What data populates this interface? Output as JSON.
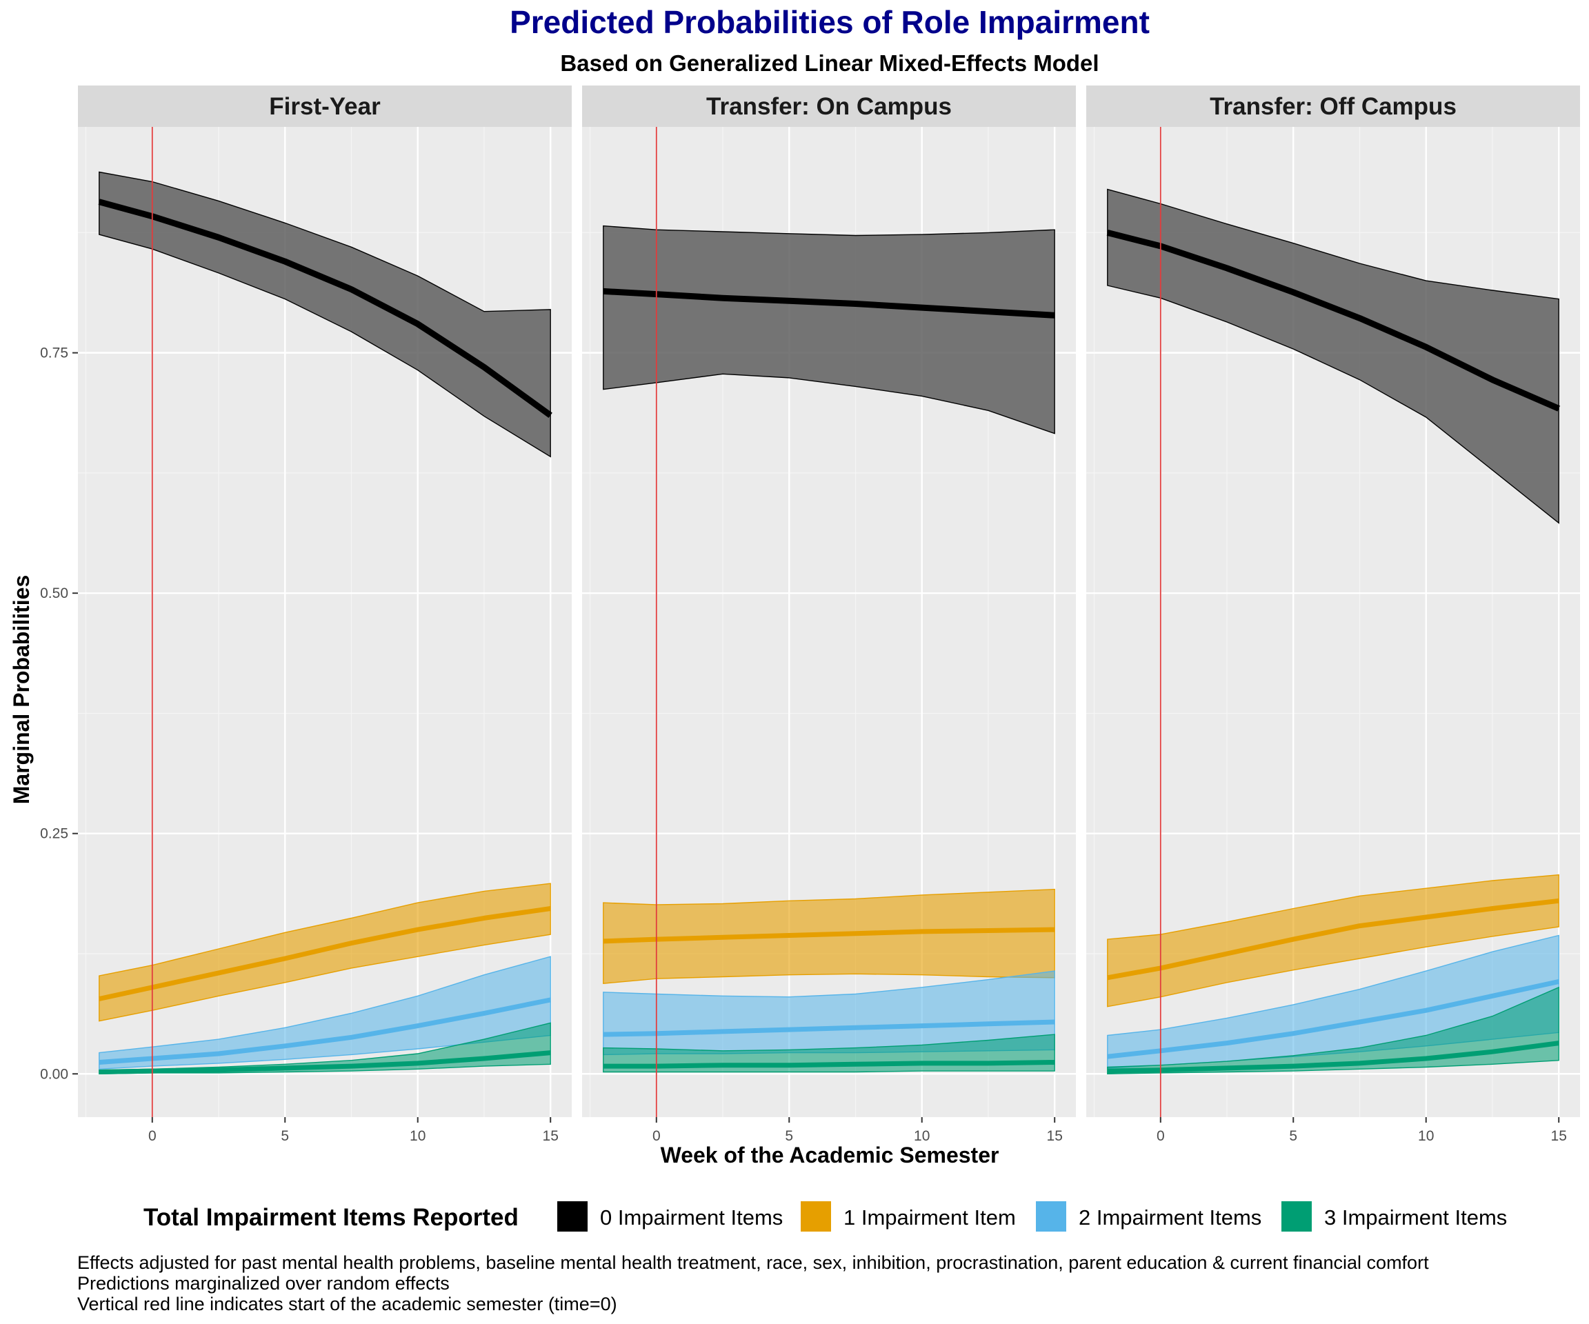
{
  "chart_data": {
    "type": "line",
    "title": "Predicted Probabilities of Role Impairment",
    "subtitle": "Based on Generalized Linear Mixed-Effects Model",
    "xlabel": "Week of the Academic Semester",
    "ylabel": "Marginal Probabilities",
    "xlim": [
      -2.8,
      15.8
    ],
    "ylim": [
      -0.045,
      0.985
    ],
    "xticks": [
      0,
      5,
      10,
      15
    ],
    "xtick_labels": [
      "0",
      "5",
      "10",
      "15"
    ],
    "yticks": [
      0,
      0.25,
      0.5,
      0.75
    ],
    "ytick_labels": [
      "0.00",
      "0.25",
      "0.50",
      "0.75"
    ],
    "grid": true,
    "reference_line": {
      "x": 0,
      "color": "#E03C3C"
    },
    "legend": {
      "title": "Total Impairment Items Reported",
      "position": "bottom",
      "items": [
        {
          "label": "0 Impairment Items",
          "color": "#000000"
        },
        {
          "label": "1 Impairment Item",
          "color": "#E69F00"
        },
        {
          "label": "2 Impairment Items",
          "color": "#56B4E9"
        },
        {
          "label": "3 Impairment Items",
          "color": "#009E73"
        }
      ]
    },
    "colors": {
      "title": "#00008B",
      "ribbon0": "#595959"
    },
    "x": [
      -2,
      0,
      2.5,
      5,
      7.5,
      10,
      12.5,
      15
    ],
    "panels": [
      {
        "name": "First-Year",
        "series": [
          {
            "name": "0 Impairment Items",
            "color": "#000000",
            "values": [
              0.907,
              0.892,
              0.87,
              0.845,
              0.816,
              0.78,
              0.735,
              0.685
            ],
            "lower": [
              0.873,
              0.858,
              0.833,
              0.806,
              0.772,
              0.732,
              0.684,
              0.642
            ],
            "upper": [
              0.938,
              0.928,
              0.908,
              0.885,
              0.86,
              0.83,
              0.793,
              0.795
            ]
          },
          {
            "name": "1 Impairment Item",
            "color": "#E69F00",
            "values": [
              0.078,
              0.09,
              0.105,
              0.12,
              0.136,
              0.15,
              0.162,
              0.172
            ],
            "lower": [
              0.055,
              0.066,
              0.081,
              0.095,
              0.11,
              0.122,
              0.134,
              0.145
            ],
            "upper": [
              0.102,
              0.113,
              0.13,
              0.147,
              0.162,
              0.178,
              0.19,
              0.198
            ]
          },
          {
            "name": "2 Impairment Items",
            "color": "#56B4E9",
            "values": [
              0.012,
              0.016,
              0.021,
              0.029,
              0.038,
              0.05,
              0.063,
              0.077
            ],
            "lower": [
              0.005,
              0.008,
              0.011,
              0.015,
              0.02,
              0.026,
              0.033,
              0.04
            ],
            "upper": [
              0.022,
              0.028,
              0.036,
              0.048,
              0.063,
              0.081,
              0.103,
              0.122
            ]
          },
          {
            "name": "3 Impairment Items",
            "color": "#009E73",
            "values": [
              0.002,
              0.003,
              0.004,
              0.006,
              0.008,
              0.011,
              0.016,
              0.022
            ],
            "lower": [
              0.0,
              0.001,
              0.001,
              0.002,
              0.003,
              0.005,
              0.008,
              0.01
            ],
            "upper": [
              0.004,
              0.005,
              0.007,
              0.01,
              0.014,
              0.021,
              0.036,
              0.053
            ]
          }
        ]
      },
      {
        "name": "Transfer: On Campus",
        "series": [
          {
            "name": "0 Impairment Items",
            "color": "#000000",
            "values": [
              0.814,
              0.811,
              0.807,
              0.804,
              0.801,
              0.797,
              0.793,
              0.789
            ],
            "lower": [
              0.712,
              0.719,
              0.728,
              0.724,
              0.715,
              0.705,
              0.69,
              0.666
            ],
            "upper": [
              0.882,
              0.878,
              0.876,
              0.874,
              0.872,
              0.873,
              0.875,
              0.878
            ]
          },
          {
            "name": "1 Impairment Item",
            "color": "#E69F00",
            "values": [
              0.138,
              0.14,
              0.142,
              0.144,
              0.146,
              0.148,
              0.149,
              0.15
            ],
            "lower": [
              0.094,
              0.099,
              0.101,
              0.103,
              0.104,
              0.103,
              0.101,
              0.1
            ],
            "upper": [
              0.178,
              0.176,
              0.177,
              0.18,
              0.182,
              0.186,
              0.189,
              0.192
            ]
          },
          {
            "name": "2 Impairment Items",
            "color": "#56B4E9",
            "values": [
              0.041,
              0.042,
              0.044,
              0.046,
              0.048,
              0.05,
              0.052,
              0.054
            ],
            "lower": [
              0.02,
              0.021,
              0.021,
              0.022,
              0.022,
              0.023,
              0.024,
              0.025
            ],
            "upper": [
              0.085,
              0.083,
              0.081,
              0.08,
              0.083,
              0.09,
              0.098,
              0.107
            ]
          },
          {
            "name": "3 Impairment Items",
            "color": "#009E73",
            "values": [
              0.008,
              0.008,
              0.009,
              0.009,
              0.01,
              0.011,
              0.011,
              0.012
            ],
            "lower": [
              0.002,
              0.002,
              0.002,
              0.002,
              0.002,
              0.003,
              0.003,
              0.003
            ],
            "upper": [
              0.027,
              0.026,
              0.024,
              0.025,
              0.027,
              0.03,
              0.035,
              0.041
            ]
          }
        ]
      },
      {
        "name": "Transfer: Off Campus",
        "series": [
          {
            "name": "0 Impairment Items",
            "color": "#000000",
            "values": [
              0.875,
              0.861,
              0.838,
              0.813,
              0.786,
              0.756,
              0.722,
              0.692
            ],
            "lower": [
              0.82,
              0.807,
              0.782,
              0.754,
              0.722,
              0.683,
              0.628,
              0.573
            ],
            "upper": [
              0.92,
              0.905,
              0.884,
              0.864,
              0.843,
              0.825,
              0.815,
              0.806
            ]
          },
          {
            "name": "1 Impairment Item",
            "color": "#E69F00",
            "values": [
              0.1,
              0.11,
              0.125,
              0.14,
              0.154,
              0.163,
              0.172,
              0.18
            ],
            "lower": [
              0.07,
              0.08,
              0.095,
              0.108,
              0.12,
              0.132,
              0.143,
              0.153
            ],
            "upper": [
              0.14,
              0.145,
              0.158,
              0.172,
              0.185,
              0.193,
              0.201,
              0.207
            ]
          },
          {
            "name": "2 Impairment Items",
            "color": "#56B4E9",
            "values": [
              0.018,
              0.024,
              0.032,
              0.042,
              0.054,
              0.066,
              0.081,
              0.096
            ],
            "lower": [
              0.006,
              0.009,
              0.013,
              0.018,
              0.023,
              0.029,
              0.036,
              0.043
            ],
            "upper": [
              0.04,
              0.046,
              0.058,
              0.072,
              0.088,
              0.107,
              0.127,
              0.144
            ]
          },
          {
            "name": "3 Impairment Items",
            "color": "#009E73",
            "values": [
              0.003,
              0.004,
              0.006,
              0.008,
              0.011,
              0.016,
              0.023,
              0.032
            ],
            "lower": [
              0.0,
              0.001,
              0.002,
              0.003,
              0.005,
              0.007,
              0.01,
              0.014
            ],
            "upper": [
              0.007,
              0.009,
              0.013,
              0.019,
              0.027,
              0.04,
              0.06,
              0.09
            ]
          }
        ]
      }
    ],
    "notes": [
      "Effects adjusted for past mental health problems, baseline mental health treatment, race, sex, inhibition, procrastination, parent education & current financial comfort",
      "Predictions marginalized over random effects",
      "Vertical red line indicates start of the academic semester (time=0)"
    ]
  }
}
